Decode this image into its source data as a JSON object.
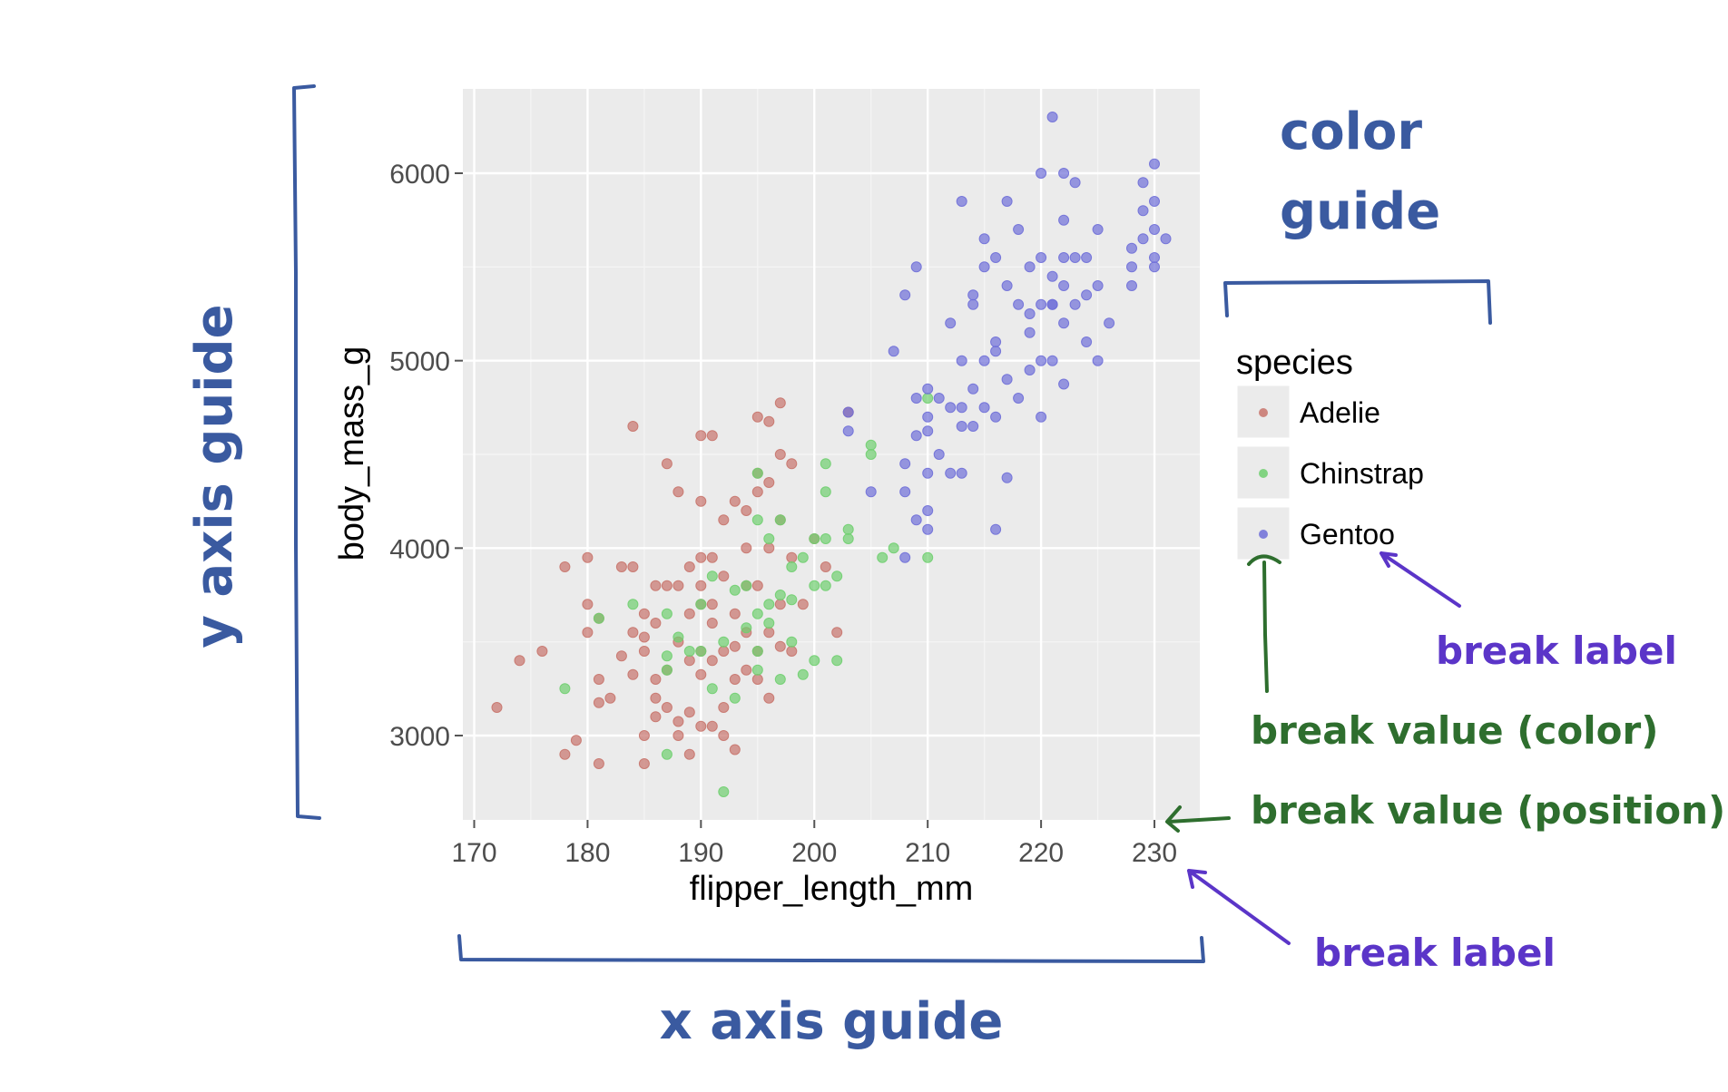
{
  "chart_data": {
    "type": "scatter",
    "xlabel": "flipper_length_mm",
    "ylabel": "body_mass_g",
    "xlim": [
      169,
      234
    ],
    "ylim": [
      2550,
      6450
    ],
    "x_ticks": [
      170,
      180,
      190,
      200,
      210,
      220,
      230
    ],
    "x_tick_labels": [
      "170",
      "180",
      "190",
      "200",
      "210",
      "220",
      "230"
    ],
    "y_ticks": [
      3000,
      4000,
      5000,
      6000
    ],
    "y_tick_labels": [
      "3000",
      "4000",
      "5000",
      "6000"
    ],
    "grid": true,
    "legend": {
      "title": "species",
      "placement": "right",
      "entries": [
        "Adelie",
        "Chinstrap",
        "Gentoo"
      ]
    },
    "colors": {
      "Adelie": "#c8746c",
      "Chinstrap": "#6fcf6f",
      "Gentoo": "#6f6fd8"
    },
    "series": [
      {
        "name": "Adelie",
        "points": [
          [
            172,
            3150
          ],
          [
            174,
            3400
          ],
          [
            176,
            3450
          ],
          [
            178,
            3900
          ],
          [
            178,
            2900
          ],
          [
            179,
            2975
          ],
          [
            180,
            3950
          ],
          [
            180,
            3700
          ],
          [
            180,
            3550
          ],
          [
            181,
            3300
          ],
          [
            181,
            3175
          ],
          [
            181,
            2850
          ],
          [
            182,
            3200
          ],
          [
            183,
            3425
          ],
          [
            184,
            3550
          ],
          [
            184,
            3325
          ],
          [
            184,
            3900
          ],
          [
            184,
            4650
          ],
          [
            185,
            3450
          ],
          [
            185,
            3650
          ],
          [
            185,
            3000
          ],
          [
            185,
            2850
          ],
          [
            186,
            3800
          ],
          [
            186,
            3600
          ],
          [
            186,
            3300
          ],
          [
            186,
            3100
          ],
          [
            187,
            4450
          ],
          [
            187,
            3800
          ],
          [
            187,
            3350
          ],
          [
            187,
            3150
          ],
          [
            188,
            4300
          ],
          [
            188,
            3800
          ],
          [
            188,
            3500
          ],
          [
            188,
            3000
          ],
          [
            189,
            3650
          ],
          [
            189,
            3900
          ],
          [
            189,
            3400
          ],
          [
            189,
            2900
          ],
          [
            190,
            4600
          ],
          [
            190,
            4250
          ],
          [
            190,
            3950
          ],
          [
            190,
            3800
          ],
          [
            190,
            3700
          ],
          [
            190,
            3450
          ],
          [
            190,
            3325
          ],
          [
            190,
            3050
          ],
          [
            191,
            4600
          ],
          [
            191,
            3950
          ],
          [
            191,
            3700
          ],
          [
            191,
            3400
          ],
          [
            191,
            3050
          ],
          [
            192,
            4150
          ],
          [
            192,
            3850
          ],
          [
            192,
            3450
          ],
          [
            192,
            3150
          ],
          [
            192,
            3000
          ],
          [
            193,
            4250
          ],
          [
            193,
            3650
          ],
          [
            193,
            3475
          ],
          [
            193,
            3300
          ],
          [
            193,
            2925
          ],
          [
            194,
            4200
          ],
          [
            194,
            3800
          ],
          [
            194,
            3550
          ],
          [
            194,
            4000
          ],
          [
            195,
            4700
          ],
          [
            195,
            4400
          ],
          [
            195,
            4300
          ],
          [
            195,
            3800
          ],
          [
            195,
            3450
          ],
          [
            195,
            3300
          ],
          [
            196,
            4675
          ],
          [
            196,
            4350
          ],
          [
            196,
            4000
          ],
          [
            196,
            3550
          ],
          [
            197,
            4775
          ],
          [
            197,
            4500
          ],
          [
            197,
            4150
          ],
          [
            197,
            3700
          ],
          [
            197,
            3475
          ],
          [
            198,
            4450
          ],
          [
            198,
            3950
          ],
          [
            198,
            3450
          ],
          [
            199,
            3700
          ],
          [
            200,
            4050
          ],
          [
            201,
            3900
          ],
          [
            202,
            3550
          ],
          [
            203,
            4725
          ],
          [
            181,
            3625
          ],
          [
            186,
            3200
          ],
          [
            188,
            3075
          ],
          [
            194,
            3350
          ],
          [
            196,
            3200
          ],
          [
            191,
            3600
          ],
          [
            189,
            3125
          ],
          [
            185,
            3525
          ],
          [
            183,
            3900
          ]
        ]
      },
      {
        "name": "Chinstrap",
        "points": [
          [
            178,
            3250
          ],
          [
            181,
            3625
          ],
          [
            184,
            3700
          ],
          [
            187,
            3650
          ],
          [
            187,
            3350
          ],
          [
            187,
            2900
          ],
          [
            188,
            3525
          ],
          [
            189,
            3450
          ],
          [
            190,
            3700
          ],
          [
            190,
            3450
          ],
          [
            191,
            3250
          ],
          [
            192,
            3500
          ],
          [
            192,
            2700
          ],
          [
            193,
            3775
          ],
          [
            193,
            3200
          ],
          [
            194,
            3800
          ],
          [
            194,
            3575
          ],
          [
            195,
            4400
          ],
          [
            195,
            4150
          ],
          [
            195,
            3650
          ],
          [
            195,
            3350
          ],
          [
            196,
            4050
          ],
          [
            196,
            3600
          ],
          [
            196,
            3700
          ],
          [
            197,
            3750
          ],
          [
            197,
            3300
          ],
          [
            197,
            4150
          ],
          [
            198,
            3725
          ],
          [
            198,
            3500
          ],
          [
            199,
            3950
          ],
          [
            199,
            3325
          ],
          [
            200,
            4050
          ],
          [
            200,
            3800
          ],
          [
            200,
            3400
          ],
          [
            201,
            4450
          ],
          [
            201,
            4300
          ],
          [
            201,
            3800
          ],
          [
            201,
            4050
          ],
          [
            202,
            3400
          ],
          [
            202,
            3850
          ],
          [
            203,
            4100
          ],
          [
            203,
            4050
          ],
          [
            205,
            4550
          ],
          [
            205,
            4500
          ],
          [
            206,
            3950
          ],
          [
            207,
            4000
          ],
          [
            210,
            4800
          ],
          [
            210,
            3950
          ],
          [
            187,
            3425
          ],
          [
            191,
            3850
          ],
          [
            195,
            3450
          ],
          [
            198,
            3900
          ]
        ]
      },
      {
        "name": "Gentoo",
        "points": [
          [
            203,
            4625
          ],
          [
            203,
            4725
          ],
          [
            205,
            4300
          ],
          [
            207,
            5050
          ],
          [
            208,
            5350
          ],
          [
            208,
            4450
          ],
          [
            208,
            4300
          ],
          [
            208,
            3950
          ],
          [
            209,
            5500
          ],
          [
            209,
            4800
          ],
          [
            209,
            4600
          ],
          [
            209,
            4150
          ],
          [
            210,
            4850
          ],
          [
            210,
            4700
          ],
          [
            210,
            4625
          ],
          [
            210,
            4400
          ],
          [
            210,
            4200
          ],
          [
            210,
            4100
          ],
          [
            211,
            4800
          ],
          [
            211,
            4500
          ],
          [
            212,
            5200
          ],
          [
            212,
            4750
          ],
          [
            212,
            4400
          ],
          [
            213,
            5850
          ],
          [
            213,
            5000
          ],
          [
            213,
            4650
          ],
          [
            213,
            4400
          ],
          [
            214,
            5350
          ],
          [
            214,
            4850
          ],
          [
            214,
            4650
          ],
          [
            215,
            5650
          ],
          [
            215,
            5500
          ],
          [
            215,
            5000
          ],
          [
            215,
            4750
          ],
          [
            216,
            5550
          ],
          [
            216,
            5100
          ],
          [
            216,
            4700
          ],
          [
            216,
            4100
          ],
          [
            217,
            5850
          ],
          [
            217,
            5400
          ],
          [
            217,
            4900
          ],
          [
            217,
            4375
          ],
          [
            218,
            5700
          ],
          [
            218,
            5300
          ],
          [
            218,
            4800
          ],
          [
            219,
            5500
          ],
          [
            219,
            5250
          ],
          [
            219,
            4950
          ],
          [
            220,
            6000
          ],
          [
            220,
            5550
          ],
          [
            220,
            5300
          ],
          [
            220,
            5000
          ],
          [
            220,
            4700
          ],
          [
            221,
            6300
          ],
          [
            221,
            5450
          ],
          [
            221,
            5300
          ],
          [
            221,
            5000
          ],
          [
            222,
            6000
          ],
          [
            222,
            5750
          ],
          [
            222,
            5550
          ],
          [
            222,
            5400
          ],
          [
            222,
            4875
          ],
          [
            223,
            5950
          ],
          [
            223,
            5550
          ],
          [
            223,
            5300
          ],
          [
            224,
            5550
          ],
          [
            224,
            5350
          ],
          [
            225,
            5700
          ],
          [
            225,
            5400
          ],
          [
            225,
            5000
          ],
          [
            226,
            5200
          ],
          [
            228,
            5600
          ],
          [
            228,
            5400
          ],
          [
            228,
            5500
          ],
          [
            229,
            5950
          ],
          [
            229,
            5800
          ],
          [
            229,
            5650
          ],
          [
            230,
            6050
          ],
          [
            230,
            5850
          ],
          [
            230,
            5700
          ],
          [
            230,
            5500
          ],
          [
            230,
            5550
          ],
          [
            231,
            5650
          ],
          [
            213,
            4750
          ],
          [
            214,
            5300
          ],
          [
            216,
            5050
          ],
          [
            219,
            5150
          ],
          [
            221,
            5300
          ],
          [
            222,
            5200
          ],
          [
            224,
            5100
          ]
        ]
      }
    ]
  },
  "annotations": {
    "y_axis_guide": "y axis guide",
    "x_axis_guide": "x axis guide",
    "color_guide_line1": "color",
    "color_guide_line2": "guide",
    "break_label_legend": "break label",
    "break_value_color": "break value (color)",
    "break_value_position": "break value (position)",
    "break_label_axis": "break label"
  },
  "annotation_colors": {
    "guide": "#3a5aa0",
    "break_value": "#2e6e2e",
    "break_label": "#5b35c8"
  }
}
